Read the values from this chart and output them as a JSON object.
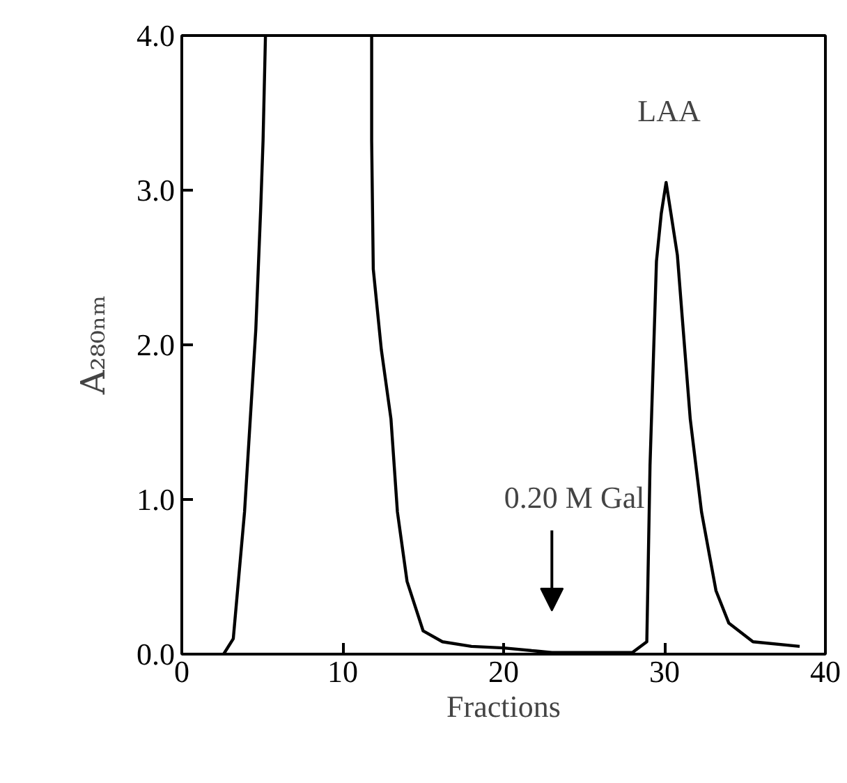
{
  "chart_data": {
    "type": "line",
    "xlabel": "Fractions",
    "ylabel": "A₂₈₀ₙₘ",
    "x": [
      2.6,
      3.2,
      3.9,
      4.6,
      4.9,
      5.05,
      5.2,
      8.5,
      11.8,
      11.8,
      11.9,
      12.4,
      13.0,
      13.4,
      14.0,
      15.0,
      16.2,
      18.0,
      20.0,
      22.0,
      23.0,
      28.0,
      28.9,
      29.1,
      29.5,
      29.8,
      30.1,
      30.4,
      30.8,
      31.1,
      31.6,
      32.3,
      33.2,
      34.0,
      35.5,
      38.4
    ],
    "series": [
      {
        "color": "#000000",
        "values": [
          0.0,
          0.1,
          0.92,
          2.1,
          2.87,
          3.32,
          4.0,
          null,
          4.0,
          3.32,
          2.49,
          1.97,
          1.52,
          0.92,
          0.47,
          0.15,
          0.08,
          0.05,
          0.04,
          0.02,
          0.01,
          0.01,
          0.08,
          1.22,
          2.54,
          2.85,
          3.05,
          2.85,
          2.58,
          2.18,
          1.52,
          0.92,
          0.41,
          0.2,
          0.08,
          0.05
        ]
      }
    ],
    "xlim": [
      0,
      40
    ],
    "ylim": [
      0,
      4
    ],
    "xticks": [
      0,
      10,
      20,
      30,
      40
    ],
    "yticks": [
      {
        "value": 0,
        "label": "0.0"
      },
      {
        "value": 1,
        "label": "1.0"
      },
      {
        "value": 2,
        "label": "2.0"
      },
      {
        "value": 3,
        "label": "3.0"
      },
      {
        "value": 4,
        "label": "4.0"
      }
    ],
    "annotations": [
      "LAA",
      "0.20 M Gal"
    ],
    "grid": false,
    "marker": "none",
    "line_style": "solid"
  }
}
